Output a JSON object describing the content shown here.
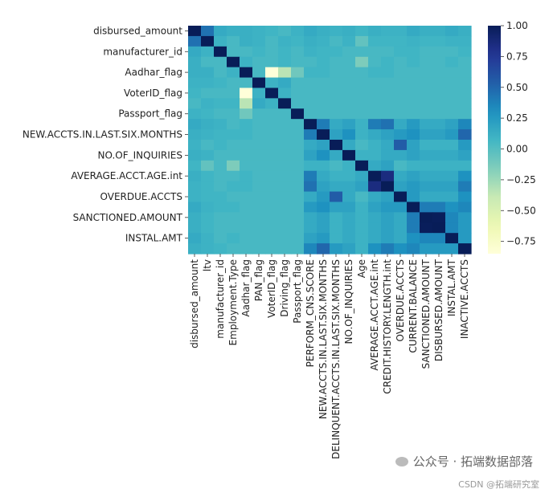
{
  "chart_data": {
    "type": "heatmap",
    "colormap": "YlGnBu",
    "vmin": -0.85,
    "vmax": 1.0,
    "y_tick_labels": [
      "disbursed_amount",
      "manufacturer_id",
      "Aadhar_flag",
      "VoterID_flag",
      "Passport_flag",
      "NEW.ACCTS.IN.LAST.SIX.MONTHS",
      "NO.OF_INQUIRIES",
      "AVERAGE.ACCT.AGE.int",
      "OVERDUE.ACCTS",
      "SANCTIONED.AMOUNT",
      "INSTAL.AMT"
    ],
    "x_tick_labels": [
      "disbursed_amount",
      "ltv",
      "manufacturer_id",
      "Employment.Type",
      "Aadhar_flag",
      "PAN_flag",
      "VoterID_flag",
      "Driving_flag",
      "Passport_flag",
      "PERFORM_CNS.SCORE",
      "NEW.ACCTS.IN.LAST.SIX.MONTHS",
      "DELINQUENT.ACCTS.IN.LAST.SIX.MONTHS",
      "NO.OF_INQUIRIES",
      "Age",
      "AVERAGE.ACCT.AGE.int",
      "CREDIT.HISTORY.LENGTH.int",
      "OVERDUE.ACCTS",
      "CURRENT.BALANCE",
      "SANCTIONED.AMOUNT",
      "DISBURSED.AMOUNT",
      "INSTAL.AMT",
      "INACTIVE.ACCTS"
    ],
    "colorbar_ticks": [
      "1.00",
      "0.75",
      "0.50",
      "0.25",
      "0.00",
      "−0.25",
      "−0.50",
      "−0.75"
    ],
    "colorbar_tick_values": [
      1.0,
      0.75,
      0.5,
      0.25,
      0.0,
      -0.25,
      -0.5,
      -0.75
    ],
    "variables": [
      "disbursed_amount",
      "ltv",
      "manufacturer_id",
      "Employment.Type",
      "Aadhar_flag",
      "PAN_flag",
      "VoterID_flag",
      "Driving_flag",
      "Passport_flag",
      "PERFORM_CNS.SCORE",
      "NEW.ACCTS.IN.LAST.SIX.MONTHS",
      "DELINQUENT.ACCTS.IN.LAST.SIX.MONTHS",
      "NO.OF_INQUIRIES",
      "Age",
      "AVERAGE.ACCT.AGE.int",
      "CREDIT.HISTORY.LENGTH.int",
      "OVERDUE.ACCTS",
      "CURRENT.BALANCE",
      "SANCTIONED.AMOUNT",
      "DISBURSED.AMOUNT",
      "INSTAL.AMT",
      "INACTIVE.ACCTS"
    ],
    "matrix": [
      [
        1.0,
        0.45,
        0.15,
        0.12,
        0.12,
        0.1,
        0.08,
        0.05,
        0.1,
        0.15,
        0.12,
        0.1,
        0.12,
        0.08,
        0.12,
        0.1,
        0.1,
        0.15,
        0.12,
        0.12,
        0.15,
        0.12
      ],
      [
        0.45,
        1.0,
        0.1,
        0.05,
        0.12,
        0.1,
        0.05,
        0.1,
        0.08,
        0.12,
        0.1,
        0.05,
        0.1,
        -0.05,
        0.08,
        0.08,
        0.08,
        0.1,
        0.08,
        0.08,
        0.1,
        0.1
      ],
      [
        0.15,
        0.1,
        1.0,
        0.05,
        0.05,
        0.08,
        0.05,
        0.08,
        0.05,
        0.1,
        0.08,
        0.08,
        0.05,
        0.05,
        0.05,
        0.05,
        0.08,
        0.08,
        0.05,
        0.05,
        0.05,
        0.08
      ],
      [
        0.12,
        0.05,
        0.05,
        1.0,
        0.1,
        0.05,
        0.05,
        0.08,
        0.05,
        0.05,
        0.08,
        0.05,
        0.05,
        -0.15,
        0.05,
        0.08,
        0.05,
        0.08,
        0.05,
        0.05,
        0.08,
        0.05
      ],
      [
        0.12,
        0.12,
        0.05,
        0.1,
        1.0,
        0.05,
        -0.85,
        -0.35,
        -0.1,
        0.08,
        0.08,
        0.05,
        0.05,
        0.05,
        0.08,
        0.08,
        0.05,
        0.05,
        0.05,
        0.05,
        0.05,
        0.05
      ],
      [
        0.1,
        0.1,
        0.08,
        0.05,
        0.05,
        1.0,
        0.1,
        0.15,
        0.05,
        0.05,
        0.05,
        0.05,
        0.05,
        0.05,
        0.05,
        0.05,
        0.05,
        0.05,
        0.05,
        0.05,
        0.05,
        0.05
      ],
      [
        0.08,
        0.05,
        0.05,
        0.05,
        -0.85,
        0.1,
        1.0,
        0.1,
        0.05,
        0.05,
        0.05,
        0.05,
        0.05,
        0.05,
        0.05,
        0.05,
        0.05,
        0.05,
        0.05,
        0.05,
        0.05,
        0.05
      ],
      [
        0.05,
        0.1,
        0.08,
        0.08,
        -0.35,
        0.15,
        0.1,
        1.0,
        0.05,
        0.05,
        0.05,
        0.05,
        0.05,
        0.05,
        0.05,
        0.05,
        0.05,
        0.05,
        0.05,
        0.05,
        0.05,
        0.05
      ],
      [
        0.1,
        0.08,
        0.05,
        0.05,
        -0.1,
        0.05,
        0.05,
        0.05,
        1.0,
        0.05,
        0.05,
        0.05,
        0.05,
        0.05,
        0.05,
        0.05,
        0.05,
        0.05,
        0.05,
        0.05,
        0.05,
        0.05
      ],
      [
        0.15,
        0.12,
        0.1,
        0.05,
        0.08,
        0.05,
        0.05,
        0.05,
        0.05,
        1.0,
        0.4,
        0.15,
        0.2,
        0.1,
        0.4,
        0.45,
        0.15,
        0.25,
        0.15,
        0.15,
        0.2,
        0.35
      ],
      [
        0.12,
        0.1,
        0.08,
        0.08,
        0.08,
        0.05,
        0.05,
        0.05,
        0.05,
        0.4,
        1.0,
        0.2,
        0.3,
        0.1,
        0.15,
        0.2,
        0.25,
        0.3,
        0.2,
        0.2,
        0.25,
        0.5
      ],
      [
        0.1,
        0.05,
        0.08,
        0.05,
        0.05,
        0.05,
        0.05,
        0.05,
        0.05,
        0.15,
        0.2,
        1.0,
        0.15,
        0.05,
        0.1,
        0.15,
        0.55,
        0.2,
        0.1,
        0.1,
        0.1,
        0.25
      ],
      [
        0.12,
        0.1,
        0.05,
        0.05,
        0.05,
        0.05,
        0.05,
        0.05,
        0.05,
        0.2,
        0.3,
        0.15,
        1.0,
        0.1,
        0.1,
        0.15,
        0.15,
        0.2,
        0.15,
        0.15,
        0.15,
        0.2
      ],
      [
        0.08,
        -0.05,
        0.05,
        -0.15,
        0.05,
        0.05,
        0.05,
        0.05,
        0.05,
        0.1,
        0.1,
        0.05,
        0.1,
        1.0,
        0.15,
        0.2,
        0.05,
        0.1,
        0.1,
        0.1,
        0.1,
        0.1
      ],
      [
        0.12,
        0.08,
        0.05,
        0.05,
        0.08,
        0.05,
        0.05,
        0.05,
        0.05,
        0.4,
        0.15,
        0.1,
        0.1,
        0.15,
        1.0,
        0.85,
        0.15,
        0.2,
        0.15,
        0.15,
        0.15,
        0.3
      ],
      [
        0.1,
        0.08,
        0.05,
        0.08,
        0.08,
        0.05,
        0.05,
        0.05,
        0.05,
        0.45,
        0.2,
        0.15,
        0.15,
        0.2,
        0.85,
        1.0,
        0.2,
        0.25,
        0.2,
        0.2,
        0.2,
        0.4
      ],
      [
        0.1,
        0.08,
        0.08,
        0.05,
        0.05,
        0.05,
        0.05,
        0.05,
        0.05,
        0.15,
        0.25,
        0.55,
        0.15,
        0.05,
        0.15,
        0.2,
        1.0,
        0.25,
        0.15,
        0.15,
        0.15,
        0.3
      ],
      [
        0.15,
        0.1,
        0.08,
        0.08,
        0.05,
        0.05,
        0.05,
        0.05,
        0.05,
        0.25,
        0.3,
        0.2,
        0.2,
        0.1,
        0.2,
        0.25,
        0.25,
        1.0,
        0.4,
        0.4,
        0.3,
        0.35
      ],
      [
        0.12,
        0.08,
        0.05,
        0.05,
        0.05,
        0.05,
        0.05,
        0.05,
        0.05,
        0.15,
        0.2,
        0.1,
        0.15,
        0.1,
        0.15,
        0.2,
        0.15,
        0.4,
        1.0,
        0.99,
        0.35,
        0.25
      ],
      [
        0.12,
        0.08,
        0.05,
        0.05,
        0.05,
        0.05,
        0.05,
        0.05,
        0.05,
        0.15,
        0.2,
        0.1,
        0.15,
        0.1,
        0.15,
        0.2,
        0.15,
        0.4,
        0.99,
        1.0,
        0.35,
        0.25
      ],
      [
        0.15,
        0.1,
        0.05,
        0.08,
        0.05,
        0.05,
        0.05,
        0.05,
        0.05,
        0.2,
        0.25,
        0.1,
        0.15,
        0.1,
        0.15,
        0.2,
        0.15,
        0.3,
        0.35,
        0.35,
        1.0,
        0.25
      ],
      [
        0.12,
        0.1,
        0.08,
        0.05,
        0.05,
        0.05,
        0.05,
        0.05,
        0.05,
        0.35,
        0.5,
        0.25,
        0.2,
        0.1,
        0.3,
        0.4,
        0.3,
        0.35,
        0.25,
        0.25,
        0.25,
        1.0
      ]
    ]
  },
  "watermark": {
    "main": "公众号 · 拓端数据部落",
    "sub": "CSDN @拓端研究室"
  }
}
